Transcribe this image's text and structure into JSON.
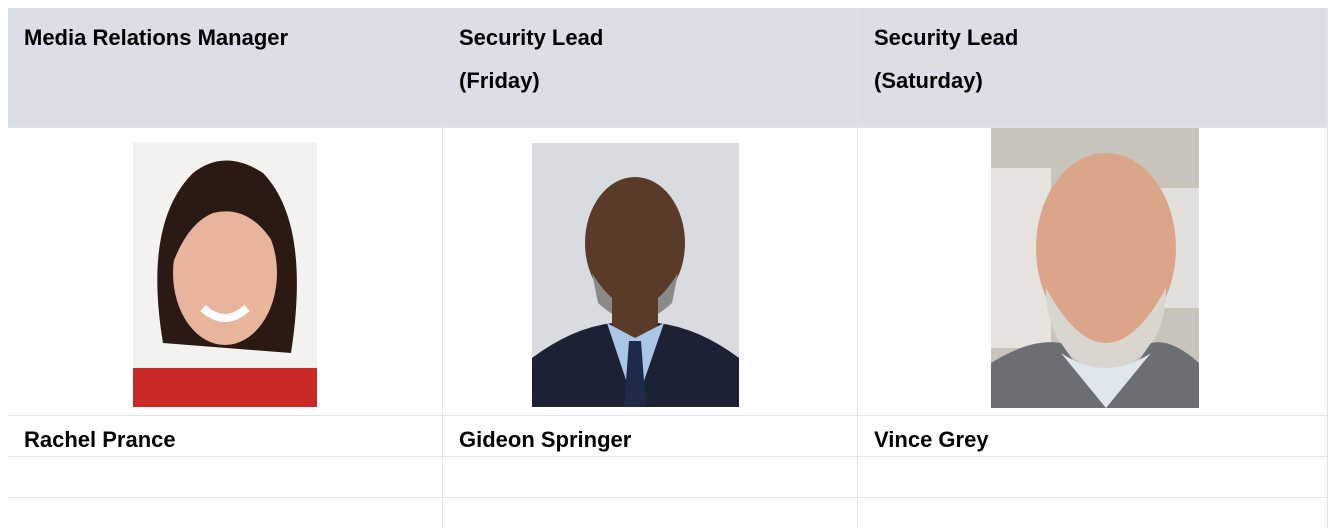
{
  "table": {
    "header": [
      {
        "lines": [
          "Media Relations Manager"
        ]
      },
      {
        "lines": [
          "Security Lead",
          "(Friday)"
        ]
      },
      {
        "lines": [
          "Security Lead",
          "(Saturday)"
        ]
      }
    ],
    "names": [
      "Rachel Prance",
      "Gideon Springer",
      "Vince Grey"
    ]
  }
}
